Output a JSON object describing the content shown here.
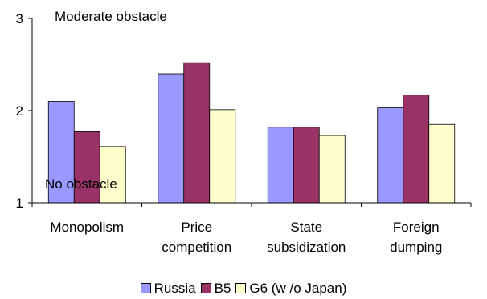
{
  "chart_data": {
    "type": "bar",
    "categories": [
      [
        "Monopolism"
      ],
      [
        "Price",
        "competition"
      ],
      [
        "State",
        "subsidization"
      ],
      [
        "Foreign",
        "dumping"
      ]
    ],
    "series": [
      {
        "name": "Russia",
        "color": "#9999ff",
        "values": [
          2.1,
          2.4,
          1.82,
          2.03
        ]
      },
      {
        "name": "B5",
        "color": "#993366",
        "values": [
          1.77,
          2.52,
          1.82,
          2.17
        ]
      },
      {
        "name": "G6 (w /o Japan)",
        "color": "#ffffcc",
        "values": [
          1.61,
          2.01,
          1.73,
          1.85
        ]
      }
    ],
    "ylim": [
      1,
      3
    ],
    "yticks": [
      1,
      2,
      3
    ],
    "annotations": {
      "top": "Moderate obstacle",
      "bottom": "No obstacle"
    },
    "legend_position": "bottom",
    "grid": false
  }
}
